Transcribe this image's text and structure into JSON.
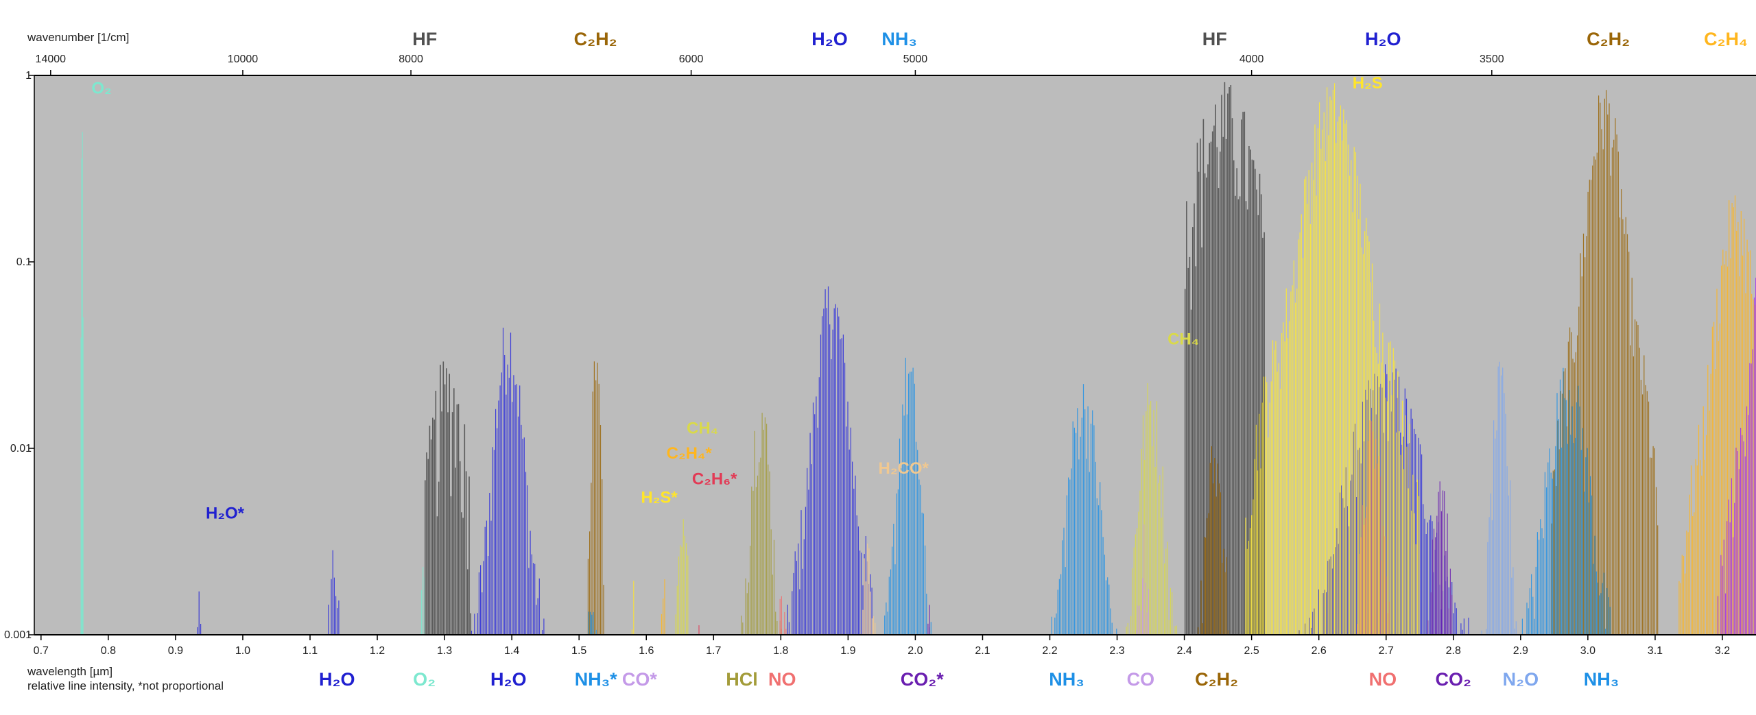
{
  "chart_data": {
    "type": "line",
    "title": "",
    "xlabel": "wavelength [µm]",
    "xlabel_note": "relative line intensity, *not proportional",
    "x2label": "wavenumber [1/cm]",
    "ylabel": "",
    "xlim": [
      0.69,
      3.25
    ],
    "ylim": [
      0.001,
      1
    ],
    "y_scale": "log",
    "grid": false,
    "background": "#bcbcbc",
    "x_ticks": [
      "0.7",
      "0.8",
      "0.9",
      "1.0",
      "1.1",
      "1.2",
      "1.3",
      "1.4",
      "1.5",
      "1.6",
      "1.7",
      "1.8",
      "1.9",
      "2.0",
      "2.1",
      "2.2",
      "2.3",
      "2.4",
      "2.5",
      "2.6",
      "2.7",
      "2.8",
      "2.9",
      "3.0",
      "3.1",
      "3.2"
    ],
    "x2_ticks": [
      "14000",
      "10000",
      "8000",
      "6000",
      "5000",
      "4000",
      "3500"
    ],
    "y_ticks": [
      "1",
      "0.1",
      "0.01",
      "0.001"
    ],
    "series": [
      {
        "name": "O2",
        "color": "#7de8cf",
        "bands": [
          {
            "center": 0.761,
            "width": 0.004,
            "peak": 0.9
          },
          {
            "center": 1.268,
            "width": 0.012,
            "peak": 0.005
          }
        ]
      },
      {
        "name": "H2O*",
        "color": "#2525d6",
        "bands": [
          {
            "center": 0.935,
            "width": 0.012,
            "peak": 0.003
          }
        ]
      },
      {
        "name": "H2O",
        "color": "#2b2bdc",
        "bands": [
          {
            "center": 1.135,
            "width": 0.04,
            "peak": 0.0035
          },
          {
            "center": 1.395,
            "width": 0.13,
            "peak": 0.055
          },
          {
            "center": 1.875,
            "width": 0.15,
            "peak": 0.085
          },
          {
            "center": 2.7,
            "width": 0.36,
            "peak": 0.03
          }
        ]
      },
      {
        "name": "HF",
        "color": "#505050",
        "bands": [
          {
            "center": 1.305,
            "width": 0.07,
            "peak": 0.033
          },
          {
            "center": 2.46,
            "width": 0.12,
            "peak": 0.95
          }
        ]
      },
      {
        "name": "C2H2",
        "color": "#9a6608",
        "bands": [
          {
            "center": 1.525,
            "width": 0.03,
            "peak": 0.055
          },
          {
            "center": 2.445,
            "width": 0.1,
            "peak": 0.012
          },
          {
            "center": 3.025,
            "width": 0.16,
            "peak": 0.95
          }
        ]
      },
      {
        "name": "NH3*",
        "color": "#1e90e6",
        "bands": [
          {
            "center": 1.52,
            "width": 0.04,
            "peak": 0.002
          }
        ]
      },
      {
        "name": "CO*",
        "color": "#c49ae8",
        "bands": [
          {
            "center": 1.575,
            "width": 0.03,
            "peak": 0.0015
          }
        ]
      },
      {
        "name": "H2S*",
        "color": "#ffe52a",
        "bands": [
          {
            "center": 1.58,
            "width": 0.01,
            "peak": 0.0035
          }
        ]
      },
      {
        "name": "C2H4*",
        "color": "#ffb61e",
        "bands": [
          {
            "center": 1.625,
            "width": 0.03,
            "peak": 0.0025
          }
        ]
      },
      {
        "name": "C2H6*",
        "color": "#e23a55",
        "bands": [
          {
            "center": 1.675,
            "width": 0.04,
            "peak": 0.0015
          }
        ]
      },
      {
        "name": "CH4",
        "color": "#d9d94a",
        "bands": [
          {
            "center": 1.655,
            "width": 0.07,
            "peak": 0.0045
          },
          {
            "center": 2.35,
            "width": 0.12,
            "peak": 0.025
          }
        ]
      },
      {
        "name": "HCl",
        "color": "#a39c3a",
        "bands": [
          {
            "center": 1.77,
            "width": 0.1,
            "peak": 0.022
          }
        ]
      },
      {
        "name": "NO",
        "color": "#f07070",
        "bands": [
          {
            "center": 1.8,
            "width": 0.04,
            "peak": 0.0025
          },
          {
            "center": 2.68,
            "width": 0.1,
            "peak": 0.016
          }
        ]
      },
      {
        "name": "H2CO*",
        "color": "#f0c890",
        "bands": [
          {
            "center": 1.93,
            "width": 0.05,
            "peak": 0.004
          }
        ]
      },
      {
        "name": "NH3",
        "color": "#1e90e6",
        "bands": [
          {
            "center": 1.99,
            "width": 0.1,
            "peak": 0.035
          },
          {
            "center": 2.25,
            "width": 0.15,
            "peak": 0.025
          },
          {
            "center": 2.97,
            "width": 0.2,
            "peak": 0.03
          }
        ]
      },
      {
        "name": "CO2*",
        "color": "#6a1fb0",
        "bands": [
          {
            "center": 2.02,
            "width": 0.05,
            "peak": 0.0015
          }
        ]
      },
      {
        "name": "CO",
        "color": "#c49ae8",
        "bands": [
          {
            "center": 2.34,
            "width": 0.07,
            "peak": 0.004
          }
        ]
      },
      {
        "name": "H2S",
        "color": "#ffea2e",
        "bands": [
          {
            "center": 2.62,
            "width": 0.26,
            "peak": 0.95
          }
        ]
      },
      {
        "name": "CO2",
        "color": "#6a1fb0",
        "bands": [
          {
            "center": 2.78,
            "width": 0.06,
            "peak": 0.01
          }
        ]
      },
      {
        "name": "N2O",
        "color": "#7fa7ee",
        "bands": [
          {
            "center": 2.87,
            "width": 0.08,
            "peak": 0.03
          }
        ]
      },
      {
        "name": "C2H4",
        "color": "#ffb61e",
        "bands": [
          {
            "center": 3.22,
            "width": 0.18,
            "peak": 0.25
          }
        ]
      },
      {
        "name": "unlabeled",
        "color": "#a12cf2",
        "bands": [
          {
            "center": 3.27,
            "width": 0.16,
            "peak": 0.2
          }
        ]
      }
    ],
    "annotations": {
      "top": [
        {
          "text": "HF",
          "color": "#505050",
          "wn": 7870
        },
        {
          "text": "C₂H₂",
          "color": "#9a6608",
          "wn": 6560
        },
        {
          "text": "H₂O",
          "color": "#2020d0",
          "wn": 5340
        },
        {
          "text": "NH₃",
          "color": "#1e90e6",
          "wn": 5060
        },
        {
          "text": "HF",
          "color": "#505050",
          "wn": 4090
        },
        {
          "text": "H₂O",
          "color": "#2020d0",
          "wn": 3710
        },
        {
          "text": "C₂H₂",
          "color": "#9a6608",
          "wn": 3300
        },
        {
          "text": "C₂H₄",
          "color": "#ffb61e",
          "wn": 3120
        }
      ],
      "inside": [
        {
          "text": "O₂",
          "color": "#7de8cf",
          "x": 0.775,
          "y": 0.8
        },
        {
          "text": "H₂O*",
          "color": "#2020d0",
          "x": 0.945,
          "y": 0.0042
        },
        {
          "text": "CH₄",
          "color": "#d9d94a",
          "x": 1.66,
          "y": 0.012
        },
        {
          "text": "C₂H₄*",
          "color": "#ffb61e",
          "x": 1.63,
          "y": 0.0088
        },
        {
          "text": "C₂H₆*",
          "color": "#e23a55",
          "x": 1.668,
          "y": 0.0064
        },
        {
          "text": "H₂S*",
          "color": "#ffe52a",
          "x": 1.592,
          "y": 0.0051
        },
        {
          "text": "H₂CO*",
          "color": "#f0c890",
          "x": 1.945,
          "y": 0.0073
        },
        {
          "text": "CH₄",
          "color": "#d9d94a",
          "x": 2.375,
          "y": 0.036
        },
        {
          "text": "H₂S",
          "color": "#ffe52a",
          "x": 2.65,
          "y": 0.85
        }
      ],
      "bottom": [
        {
          "text": "H₂O",
          "color": "#2020d0",
          "x": 1.14
        },
        {
          "text": "O₂",
          "color": "#7de8cf",
          "x": 1.27
        },
        {
          "text": "H₂O",
          "color": "#2020d0",
          "x": 1.395
        },
        {
          "text": "NH₃*",
          "color": "#1e90e6",
          "x": 1.525
        },
        {
          "text": "CO*",
          "color": "#c49ae8",
          "x": 1.59
        },
        {
          "text": "HCl",
          "color": "#a39c3a",
          "x": 1.742
        },
        {
          "text": "NO",
          "color": "#f07070",
          "x": 1.802
        },
        {
          "text": "CO₂*",
          "color": "#6a1fb0",
          "x": 2.01
        },
        {
          "text": "NH₃",
          "color": "#1e90e6",
          "x": 2.225
        },
        {
          "text": "CO",
          "color": "#c49ae8",
          "x": 2.335
        },
        {
          "text": "C₂H₂",
          "color": "#9a6608",
          "x": 2.448
        },
        {
          "text": "NO",
          "color": "#f07070",
          "x": 2.695
        },
        {
          "text": "CO₂",
          "color": "#6a1fb0",
          "x": 2.8
        },
        {
          "text": "N₂O",
          "color": "#7fa7ee",
          "x": 2.9
        },
        {
          "text": "NH₃",
          "color": "#1e90e6",
          "x": 3.02
        }
      ]
    }
  }
}
